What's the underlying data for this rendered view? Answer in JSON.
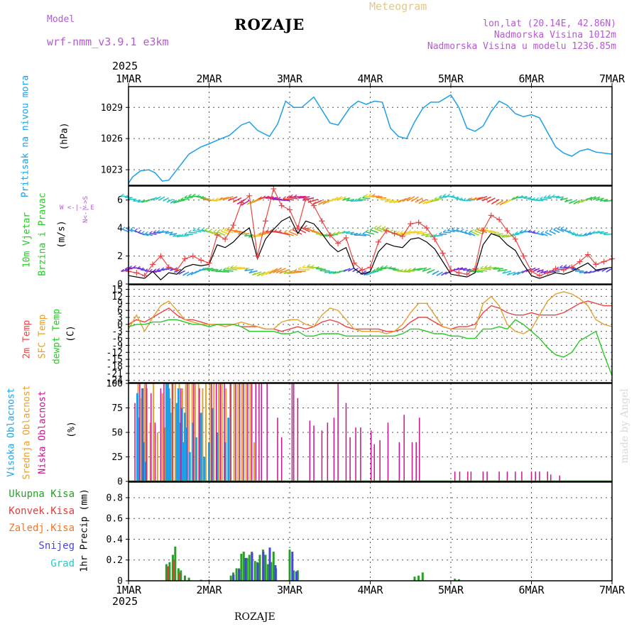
{
  "header": {
    "model_label": "Model",
    "model_name": "wrf-nmm_v3.9.1 e3km",
    "title": "ROZAJE",
    "meteogram_label": "Meteogram",
    "lonlat": "lon,lat (20.14E, 42.86N)",
    "elevation": "Nadmorska Visina 1012m",
    "model_elevation": "Nadmorska Visina u modelu 1236.85m",
    "year": "2025",
    "footer_station": "ROZAJE",
    "credit": "made by Angel"
  },
  "colors": {
    "pressure": "#1ea0e6",
    "t2m": "#e84646",
    "sfc": "#e6a032",
    "dewpt": "#28c828",
    "high_cloud": "#1ea0e6",
    "mid_cloud": "#e6a032",
    "low_cloud": "#c8148c",
    "total_precip": "#28a028",
    "conv_precip": "#e63c3c",
    "snow": "#4646dc",
    "grad": "#28c8c8",
    "model": "#b45ad2",
    "meteogram": "#e6c882"
  },
  "panel_labels": {
    "pressure": [
      "Pritisak na nivou mora",
      "(hPa)"
    ],
    "wind": [
      "10m Vjetar",
      "Brzina i Pravac",
      "(m/s)"
    ],
    "compass": "W <-|-> E",
    "compass_ns": "N<-|->S",
    "temp": [
      "2m Temp",
      "SFC Temp",
      "dewpt Temp",
      "(C)"
    ],
    "cloud": [
      "Visoka Oblacnost",
      "Srednja Oblacnost",
      "Niska Oblacnost",
      "(%)"
    ],
    "precip_unit": "1hr Precip (mm)",
    "precip_legend": [
      "Ukupna Kisa",
      "Konvek.Kisa",
      "Zaledj.Kisa",
      "Snijeg",
      "Grad"
    ]
  },
  "chart_data": [
    {
      "type": "line",
      "name": "sea_level_pressure",
      "title": "Pritisak na nivou mora",
      "ylabel": "(hPa)",
      "ylim": [
        1021.5,
        1031.0
      ],
      "yticks": [
        1023,
        1026,
        1029
      ],
      "xticks": [
        "1MAR",
        "2MAR",
        "3MAR",
        "4MAR",
        "5MAR",
        "6MAR",
        "7MAR"
      ],
      "x": [
        0.0,
        0.05,
        0.15,
        0.25,
        0.33,
        0.42,
        0.5,
        0.62,
        0.75,
        0.9,
        1.0,
        1.15,
        1.25,
        1.4,
        1.5,
        1.6,
        1.75,
        1.85,
        1.95,
        2.05,
        2.15,
        2.3,
        2.5,
        2.6,
        2.75,
        2.85,
        2.95,
        3.05,
        3.15,
        3.25,
        3.35,
        3.45,
        3.55,
        3.65,
        3.75,
        3.85,
        4.0,
        4.1,
        4.2,
        4.3,
        4.4,
        4.5,
        4.6,
        4.7,
        4.8,
        4.9,
        5.0,
        5.1,
        5.2,
        5.3,
        5.4,
        5.5,
        5.6,
        5.7,
        5.8,
        5.9,
        6.0
      ],
      "series": [
        {
          "name": "SLP",
          "values": [
            1021.7,
            1022.3,
            1022.9,
            1023.0,
            1022.7,
            1021.9,
            1022.0,
            1023.2,
            1024.5,
            1025.2,
            1025.5,
            1026.0,
            1026.3,
            1027.3,
            1027.6,
            1026.8,
            1026.2,
            1027.4,
            1029.6,
            1029.0,
            1029.0,
            1030.0,
            1027.5,
            1027.3,
            1029.0,
            1029.6,
            1029.3,
            1029.6,
            1029.5,
            1027.0,
            1026.2,
            1026.0,
            1027.6,
            1028.9,
            1029.5,
            1029.5,
            1030.2,
            1029.0,
            1027.0,
            1026.7,
            1027.2,
            1028.6,
            1029.6,
            1029.2,
            1028.4,
            1028.1,
            1028.3,
            1028.0,
            1026.6,
            1025.2,
            1024.6,
            1024.3,
            1024.8,
            1025.0,
            1024.7,
            1024.6,
            1024.5
          ]
        }
      ]
    },
    {
      "type": "line",
      "name": "wind_10m",
      "title": "10m Vjetar Brzina i Pravac",
      "ylabel": "(m/s)",
      "ylim": [
        0,
        7
      ],
      "yticks": [
        0,
        2,
        4,
        6
      ],
      "x": [
        0.0,
        0.1,
        0.2,
        0.3,
        0.4,
        0.5,
        0.6,
        0.7,
        0.8,
        0.9,
        1.0,
        1.1,
        1.2,
        1.3,
        1.4,
        1.5,
        1.6,
        1.7,
        1.8,
        1.9,
        2.0,
        2.1,
        2.2,
        2.3,
        2.4,
        2.5,
        2.6,
        2.7,
        2.8,
        2.9,
        3.0,
        3.1,
        3.2,
        3.3,
        3.4,
        3.5,
        3.6,
        3.7,
        3.8,
        3.9,
        4.0,
        4.1,
        4.2,
        4.3,
        4.4,
        4.5,
        4.6,
        4.7,
        4.8,
        4.9,
        5.0,
        5.1,
        5.2,
        5.3,
        5.4,
        5.5,
        5.6,
        5.7,
        5.8,
        5.9,
        6.0
      ],
      "series": [
        {
          "name": "gust",
          "values": [
            0.9,
            0.8,
            0.6,
            1.4,
            2.0,
            1.2,
            1.0,
            1.8,
            2.0,
            1.7,
            1.5,
            3.5,
            3.2,
            4.2,
            5.8,
            6.3,
            2.0,
            4.5,
            6.8,
            5.6,
            5.3,
            4.0,
            6.1,
            5.6,
            4.5,
            3.5,
            2.9,
            3.3,
            1.5,
            1.0,
            1.2,
            3.0,
            3.8,
            3.6,
            3.4,
            4.3,
            4.4,
            4.0,
            3.2,
            2.2,
            1.0,
            0.8,
            0.7,
            1.1,
            3.8,
            4.9,
            4.6,
            3.8,
            3.2,
            2.0,
            0.9,
            0.6,
            0.8,
            1.1,
            1.0,
            1.2,
            1.6,
            2.1,
            1.4,
            1.6,
            1.8
          ]
        },
        {
          "name": "speed",
          "values": [
            0.6,
            0.5,
            0.4,
            0.9,
            0.3,
            0.8,
            0.7,
            1.2,
            1.4,
            1.3,
            1.4,
            2.8,
            2.6,
            3.0,
            3.6,
            4.0,
            1.8,
            3.2,
            3.9,
            4.5,
            4.8,
            3.6,
            4.5,
            4.3,
            3.6,
            2.8,
            2.3,
            2.6,
            1.1,
            0.7,
            0.9,
            2.3,
            2.9,
            2.7,
            2.6,
            3.2,
            3.3,
            3.0,
            2.5,
            1.6,
            0.7,
            0.6,
            0.5,
            0.8,
            2.8,
            3.6,
            3.4,
            2.8,
            2.4,
            1.4,
            0.6,
            0.4,
            0.6,
            0.8,
            0.7,
            0.9,
            1.2,
            1.5,
            1.0,
            1.1,
            1.2
          ]
        }
      ]
    },
    {
      "type": "line",
      "name": "temperature",
      "title": "2m Temp / SFC Temp / dewpt Temp",
      "ylabel": "(C)",
      "ylim": [
        -25,
        17
      ],
      "yticks": [
        15,
        12,
        9,
        6,
        3,
        0,
        -3,
        -6,
        -9,
        -12,
        -15,
        -18,
        -21,
        -24
      ],
      "x": [
        0.0,
        0.1,
        0.2,
        0.3,
        0.4,
        0.5,
        0.6,
        0.7,
        0.8,
        0.9,
        1.0,
        1.1,
        1.2,
        1.3,
        1.4,
        1.5,
        1.6,
        1.7,
        1.8,
        1.9,
        2.0,
        2.1,
        2.2,
        2.3,
        2.4,
        2.5,
        2.6,
        2.7,
        2.8,
        2.9,
        3.0,
        3.1,
        3.2,
        3.3,
        3.4,
        3.5,
        3.6,
        3.7,
        3.8,
        3.9,
        4.0,
        4.1,
        4.2,
        4.3,
        4.4,
        4.5,
        4.6,
        4.7,
        4.8,
        4.9,
        5.0,
        5.1,
        5.2,
        5.3,
        5.4,
        5.5,
        5.6,
        5.7,
        5.8,
        5.9,
        6.0
      ],
      "series": [
        {
          "name": "2m Temp",
          "values": [
            0,
            2,
            1,
            3,
            5,
            7,
            4,
            2,
            2,
            1,
            0,
            0,
            0,
            0,
            -1,
            -1,
            -1,
            -2,
            -2,
            -3,
            -2,
            -1,
            -2,
            -1,
            1,
            2,
            1,
            -1,
            -2,
            -2,
            -2,
            -2,
            -3,
            -3,
            -2,
            1,
            3,
            3,
            1,
            -1,
            -2,
            -1,
            -1,
            0,
            5,
            8,
            7,
            5,
            4,
            4,
            5,
            4,
            4,
            4,
            5,
            7,
            9,
            10,
            9,
            8,
            8
          ]
        },
        {
          "name": "SFC Temp",
          "values": [
            -2,
            4,
            -3,
            3,
            8,
            10,
            6,
            2,
            1,
            0,
            0,
            0,
            -1,
            0,
            1,
            0,
            -1,
            -2,
            -2,
            1,
            2,
            2,
            0,
            -1,
            4,
            7,
            6,
            2,
            -2,
            -3,
            -3,
            -3,
            -4,
            -3,
            0,
            5,
            9,
            9,
            4,
            -1,
            -2,
            -2,
            -2,
            -2,
            9,
            12,
            8,
            0,
            -3,
            -4,
            -2,
            4,
            10,
            13,
            14,
            13,
            11,
            8,
            2,
            0,
            -1
          ]
        },
        {
          "name": "dewpt Temp",
          "values": [
            -1,
            0,
            0,
            1,
            1,
            2,
            2,
            1,
            0,
            0,
            -1,
            0,
            0,
            0,
            -1,
            -3,
            -3,
            -3,
            -3,
            -4,
            -4,
            -3,
            -5,
            -5,
            -4,
            -4,
            -4,
            -5,
            -5,
            -5,
            -5,
            -5,
            -5,
            -5,
            -4,
            -2,
            -2,
            -3,
            -4,
            -4,
            -5,
            -5,
            -6,
            -6,
            -2,
            -2,
            -1,
            -2,
            2,
            0,
            -3,
            -6,
            -10,
            -13,
            -14,
            -12,
            -7,
            -5,
            -3,
            -13,
            -22
          ]
        }
      ]
    },
    {
      "type": "bar",
      "name": "cloud_cover",
      "title": "Visoka / Srednja / Niska Oblacnost",
      "ylabel": "(%)",
      "ylim": [
        0,
        100
      ],
      "yticks": [
        0,
        25,
        50,
        75,
        100
      ],
      "series": [
        {
          "name": "Visoka Oblacnost",
          "x": [
            0.11,
            0.13,
            0.17,
            0.19,
            0.21,
            0.47,
            0.48,
            0.49,
            0.5,
            0.51,
            0.52,
            0.6,
            0.62,
            0.64,
            0.66,
            0.68,
            0.7,
            0.72,
            0.76,
            0.8,
            0.84,
            0.9,
            0.94,
            1.0,
            1.04,
            1.1,
            1.2,
            1.24
          ],
          "values": [
            90,
            65,
            95,
            40,
            20,
            100,
            95,
            100,
            95,
            85,
            70,
            80,
            95,
            60,
            75,
            40,
            70,
            55,
            30,
            60,
            45,
            70,
            25,
            40,
            75,
            50,
            40,
            65
          ]
        },
        {
          "name": "Srednja Oblacnost",
          "x": [
            0.12,
            0.16,
            0.2,
            0.23,
            0.27,
            0.31,
            0.36,
            0.42,
            0.45,
            0.54,
            0.58,
            0.63,
            0.67,
            0.71,
            0.75,
            0.79,
            0.83,
            0.87,
            0.92,
            0.96,
            1.01,
            1.06,
            1.12,
            1.16,
            1.21,
            1.26,
            1.31,
            1.36,
            1.41,
            1.46,
            1.51,
            1.56
          ],
          "values": [
            100,
            85,
            100,
            95,
            60,
            100,
            50,
            90,
            55,
            100,
            100,
            100,
            95,
            100,
            100,
            100,
            100,
            100,
            95,
            100,
            100,
            100,
            100,
            100,
            95,
            100,
            100,
            100,
            100,
            100,
            100,
            40
          ]
        },
        {
          "name": "Niska Oblacnost",
          "x": [
            0.08,
            0.14,
            0.18,
            0.22,
            0.28,
            0.33,
            0.4,
            0.44,
            0.55,
            0.65,
            0.73,
            0.81,
            0.88,
            1.03,
            1.09,
            1.14,
            1.19,
            1.27,
            1.33,
            1.38,
            1.43,
            1.48,
            1.53,
            1.58,
            1.62,
            1.65,
            1.72,
            1.85,
            1.9,
            2.03,
            2.05,
            2.1,
            2.25,
            2.3,
            2.4,
            2.47,
            2.55,
            2.6,
            2.7,
            2.75,
            2.82,
            2.88,
            3.01,
            3.05,
            3.12,
            3.22,
            3.36,
            3.42,
            3.52,
            3.57,
            3.61,
            4.05,
            4.11,
            4.21,
            4.25,
            4.4,
            4.45,
            4.6,
            4.7,
            4.8,
            4.88,
            5.0,
            5.05,
            5.1,
            5.2,
            5.24,
            5.35
          ],
          "values": [
            80,
            100,
            95,
            100,
            90,
            60,
            95,
            100,
            100,
            95,
            100,
            100,
            95,
            100,
            100,
            100,
            100,
            100,
            100,
            100,
            100,
            100,
            100,
            100,
            100,
            100,
            100,
            65,
            45,
            100,
            100,
            85,
            62,
            57,
            52,
            60,
            65,
            100,
            80,
            45,
            55,
            55,
            52,
            38,
            42,
            60,
            40,
            68,
            40,
            40,
            65,
            10,
            10,
            10,
            10,
            10,
            10,
            10,
            10,
            10,
            10,
            10,
            10,
            10,
            10,
            7,
            6
          ]
        }
      ]
    },
    {
      "type": "bar",
      "name": "hourly_precip",
      "title": "1hr Precip",
      "ylabel": "1hr Precip (mm)",
      "ylim": [
        0,
        0.95
      ],
      "yticks": [
        0,
        0.2,
        0.4,
        0.6,
        0.8
      ],
      "xticks": [
        "1MAR",
        "2MAR",
        "3MAR",
        "4MAR",
        "5MAR",
        "6MAR",
        "7MAR"
      ],
      "series": [
        {
          "name": "Ukupna Kisa",
          "x": [
            0.47,
            0.51,
            0.55,
            0.58,
            0.62,
            0.65,
            0.7,
            0.75,
            0.9,
            1.0,
            1.27,
            1.3,
            1.34,
            1.37,
            1.4,
            1.43,
            1.47,
            1.5,
            1.53,
            1.57,
            1.6,
            1.63,
            1.67,
            1.7,
            1.73,
            1.77,
            1.8,
            1.83,
            2.0,
            2.05,
            2.1,
            3.55,
            3.6,
            3.65,
            4.05,
            4.1
          ],
          "values": [
            0.16,
            0.18,
            0.25,
            0.33,
            0.12,
            0.1,
            0.05,
            0.03,
            0.01,
            0.01,
            0.05,
            0.08,
            0.12,
            0.12,
            0.26,
            0.28,
            0.22,
            0.25,
            0.28,
            0.19,
            0.18,
            0.25,
            0.3,
            0.25,
            0.16,
            0.18,
            0.28,
            0.12,
            0.3,
            0.1,
            0.1,
            0.04,
            0.05,
            0.08,
            0.02,
            0.015
          ]
        },
        {
          "name": "Konvek.Kisa",
          "x": [
            0.49,
            0.56,
            0.63
          ],
          "values": [
            0.14,
            0.2,
            0.08
          ]
        },
        {
          "name": "Snijeg",
          "x": [
            1.29,
            1.36,
            1.44,
            1.52,
            1.59,
            1.66,
            1.74,
            1.81,
            2.02,
            2.07
          ],
          "values": [
            0.06,
            0.11,
            0.22,
            0.27,
            0.17,
            0.28,
            0.32,
            0.15,
            0.28,
            0.09
          ]
        }
      ]
    }
  ]
}
